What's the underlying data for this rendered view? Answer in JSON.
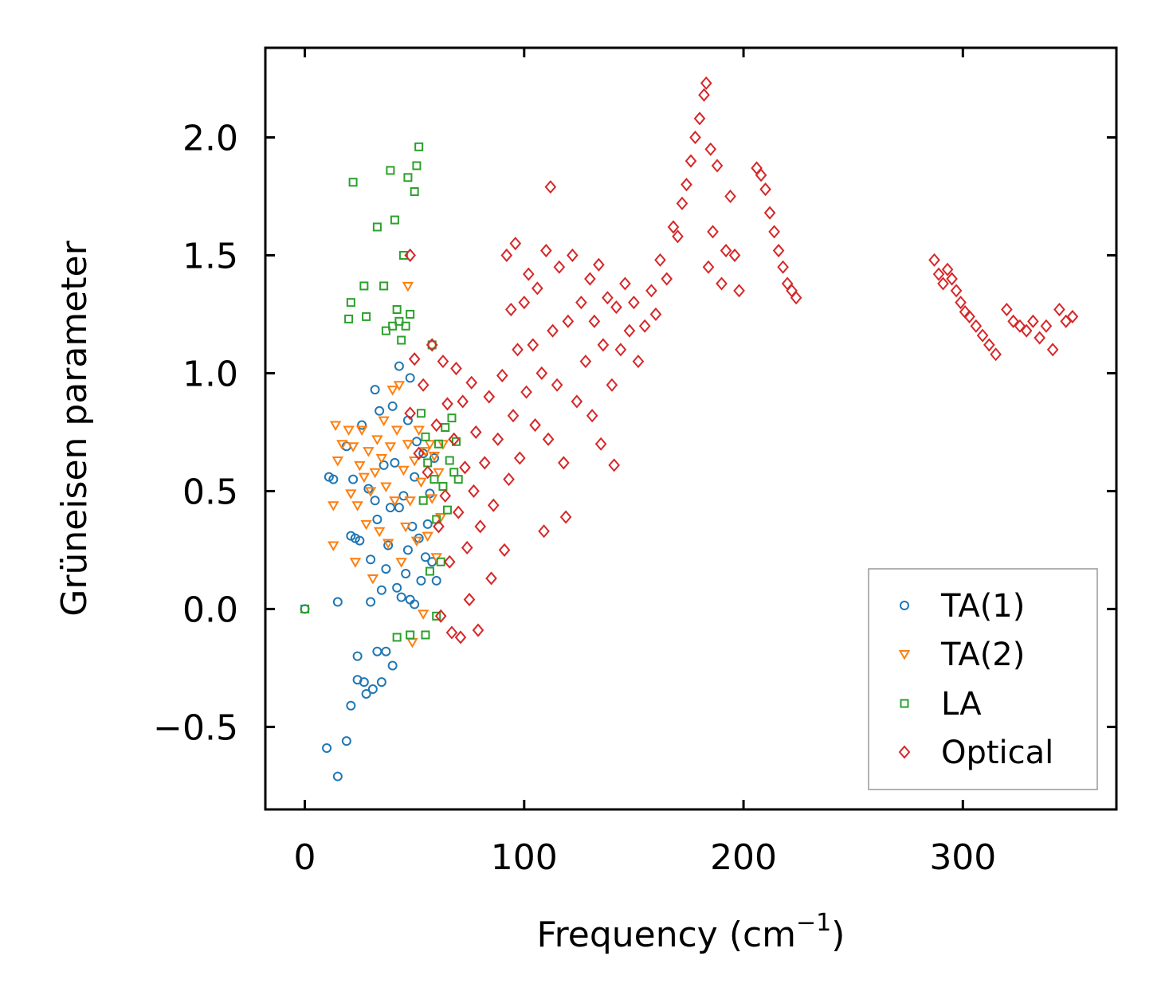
{
  "chart_data": {
    "type": "scatter",
    "title": "",
    "xlabel": "Frequency (cm",
    "xlabel_sup": "−1",
    "xlabel_close": ")",
    "ylabel": "Grüneisen parameter",
    "xlim": [
      -18,
      370
    ],
    "ylim": [
      -0.85,
      2.38
    ],
    "xticks": [
      0,
      100,
      200,
      300
    ],
    "xtick_labels": [
      "0",
      "100",
      "200",
      "300"
    ],
    "yticks": [
      -0.5,
      0.0,
      0.5,
      1.0,
      1.5,
      2.0
    ],
    "ytick_labels": [
      "−0.5",
      "0.0",
      "0.5",
      "1.0",
      "1.5",
      "2.0"
    ],
    "legend_position": "lower-right",
    "series": [
      {
        "name": "TA(1)",
        "marker": "circle",
        "color": "#1f77b4",
        "points": [
          [
            0,
            0.0
          ],
          [
            10,
            -0.59
          ],
          [
            11,
            0.56
          ],
          [
            13,
            0.55
          ],
          [
            15,
            -0.71
          ],
          [
            15,
            0.03
          ],
          [
            19,
            -0.56
          ],
          [
            19,
            0.69
          ],
          [
            21,
            -0.41
          ],
          [
            21,
            0.31
          ],
          [
            22,
            0.55
          ],
          [
            23,
            0.3
          ],
          [
            24,
            -0.2
          ],
          [
            24,
            -0.3
          ],
          [
            25,
            0.29
          ],
          [
            26,
            0.78
          ],
          [
            27,
            -0.31
          ],
          [
            28,
            -0.36
          ],
          [
            29,
            0.51
          ],
          [
            30,
            0.03
          ],
          [
            30,
            0.21
          ],
          [
            31,
            -0.34
          ],
          [
            32,
            0.46
          ],
          [
            32,
            0.93
          ],
          [
            33,
            -0.18
          ],
          [
            33,
            0.38
          ],
          [
            34,
            0.84
          ],
          [
            35,
            0.08
          ],
          [
            35,
            -0.31
          ],
          [
            36,
            0.61
          ],
          [
            37,
            0.17
          ],
          [
            37,
            -0.18
          ],
          [
            38,
            0.27
          ],
          [
            39,
            0.43
          ],
          [
            40,
            0.86
          ],
          [
            40,
            -0.24
          ],
          [
            41,
            0.62
          ],
          [
            42,
            0.09
          ],
          [
            43,
            0.43
          ],
          [
            43,
            1.03
          ],
          [
            44,
            0.05
          ],
          [
            45,
            0.48
          ],
          [
            46,
            0.15
          ],
          [
            47,
            0.25
          ],
          [
            47,
            0.8
          ],
          [
            48,
            0.04
          ],
          [
            48,
            0.98
          ],
          [
            49,
            0.35
          ],
          [
            50,
            0.02
          ],
          [
            50,
            0.56
          ],
          [
            51,
            0.71
          ],
          [
            52,
            0.3
          ],
          [
            53,
            0.12
          ],
          [
            54,
            0.66
          ],
          [
            55,
            0.22
          ],
          [
            56,
            0.36
          ],
          [
            57,
            0.49
          ],
          [
            58,
            0.2
          ],
          [
            59,
            0.64
          ],
          [
            60,
            0.12
          ]
        ]
      },
      {
        "name": "TA(2)",
        "marker": "triangle",
        "color": "#ff7f0e",
        "points": [
          [
            13,
            0.27
          ],
          [
            13,
            0.44
          ],
          [
            14,
            0.78
          ],
          [
            15,
            0.63
          ],
          [
            17,
            0.7
          ],
          [
            20,
            0.76
          ],
          [
            21,
            0.49
          ],
          [
            22,
            0.69
          ],
          [
            23,
            0.2
          ],
          [
            24,
            0.44
          ],
          [
            25,
            0.61
          ],
          [
            26,
            0.76
          ],
          [
            27,
            0.56
          ],
          [
            28,
            0.36
          ],
          [
            29,
            0.67
          ],
          [
            30,
            0.5
          ],
          [
            31,
            0.13
          ],
          [
            32,
            0.58
          ],
          [
            33,
            0.72
          ],
          [
            34,
            0.33
          ],
          [
            35,
            0.64
          ],
          [
            36,
            0.8
          ],
          [
            37,
            0.52
          ],
          [
            38,
            0.28
          ],
          [
            39,
            0.69
          ],
          [
            40,
            0.93
          ],
          [
            41,
            0.46
          ],
          [
            42,
            0.76
          ],
          [
            43,
            0.95
          ],
          [
            44,
            0.2
          ],
          [
            45,
            0.59
          ],
          [
            46,
            0.35
          ],
          [
            47,
            1.37
          ],
          [
            47,
            0.7
          ],
          [
            48,
            0.46
          ],
          [
            49,
            -0.14
          ],
          [
            50,
            0.63
          ],
          [
            51,
            0.29
          ],
          [
            52,
            0.76
          ],
          [
            53,
            0.54
          ],
          [
            54,
            -0.02
          ],
          [
            55,
            0.67
          ],
          [
            56,
            0.31
          ],
          [
            57,
            0.7
          ],
          [
            58,
            0.47
          ],
          [
            59,
            0.65
          ],
          [
            60,
            0.22
          ],
          [
            61,
            0.58
          ],
          [
            62,
            0.39
          ],
          [
            63,
            0.7
          ]
        ]
      },
      {
        "name": "LA",
        "marker": "square",
        "color": "#2ca02c",
        "points": [
          [
            0,
            0.0
          ],
          [
            20,
            1.23
          ],
          [
            21,
            1.3
          ],
          [
            22,
            1.81
          ],
          [
            27,
            1.37
          ],
          [
            28,
            1.24
          ],
          [
            33,
            1.62
          ],
          [
            36,
            1.37
          ],
          [
            37,
            1.18
          ],
          [
            39,
            1.86
          ],
          [
            40,
            1.2
          ],
          [
            41,
            1.65
          ],
          [
            42,
            1.27
          ],
          [
            43,
            1.22
          ],
          [
            44,
            1.14
          ],
          [
            45,
            1.5
          ],
          [
            46,
            1.2
          ],
          [
            47,
            1.83
          ],
          [
            48,
            1.25
          ],
          [
            50,
            1.77
          ],
          [
            51,
            1.88
          ],
          [
            52,
            1.96
          ],
          [
            53,
            0.83
          ],
          [
            54,
            0.46
          ],
          [
            55,
            0.73
          ],
          [
            56,
            0.62
          ],
          [
            57,
            0.16
          ],
          [
            58,
            1.12
          ],
          [
            59,
            0.55
          ],
          [
            60,
            0.38
          ],
          [
            61,
            0.7
          ],
          [
            62,
            0.2
          ],
          [
            63,
            0.52
          ],
          [
            64,
            0.77
          ],
          [
            65,
            0.42
          ],
          [
            66,
            0.63
          ],
          [
            67,
            0.81
          ],
          [
            68,
            0.58
          ],
          [
            69,
            0.71
          ],
          [
            70,
            0.55
          ],
          [
            42,
            -0.12
          ],
          [
            48,
            -0.11
          ],
          [
            55,
            -0.11
          ],
          [
            60,
            -0.03
          ]
        ]
      },
      {
        "name": "Optical",
        "marker": "diamond",
        "color": "#d62728",
        "points": [
          [
            48,
            1.5
          ],
          [
            48,
            0.83
          ],
          [
            50,
            1.06
          ],
          [
            52,
            0.66
          ],
          [
            54,
            0.95
          ],
          [
            56,
            0.58
          ],
          [
            58,
            1.12
          ],
          [
            60,
            0.78
          ],
          [
            61,
            0.35
          ],
          [
            62,
            -0.03
          ],
          [
            63,
            1.05
          ],
          [
            64,
            0.48
          ],
          [
            65,
            0.87
          ],
          [
            66,
            0.2
          ],
          [
            67,
            -0.1
          ],
          [
            68,
            0.72
          ],
          [
            69,
            1.02
          ],
          [
            70,
            0.41
          ],
          [
            71,
            -0.12
          ],
          [
            72,
            0.88
          ],
          [
            73,
            0.6
          ],
          [
            74,
            0.26
          ],
          [
            75,
            0.04
          ],
          [
            76,
            0.96
          ],
          [
            77,
            0.5
          ],
          [
            78,
            0.75
          ],
          [
            79,
            -0.09
          ],
          [
            80,
            0.35
          ],
          [
            82,
            0.62
          ],
          [
            84,
            0.9
          ],
          [
            85,
            0.13
          ],
          [
            86,
            0.44
          ],
          [
            88,
            0.72
          ],
          [
            90,
            0.99
          ],
          [
            91,
            0.25
          ],
          [
            92,
            1.5
          ],
          [
            93,
            0.55
          ],
          [
            94,
            1.27
          ],
          [
            95,
            0.82
          ],
          [
            96,
            1.55
          ],
          [
            97,
            1.1
          ],
          [
            98,
            0.64
          ],
          [
            100,
            1.3
          ],
          [
            101,
            0.92
          ],
          [
            102,
            1.42
          ],
          [
            104,
            1.12
          ],
          [
            105,
            0.78
          ],
          [
            106,
            1.36
          ],
          [
            108,
            1.0
          ],
          [
            109,
            0.33
          ],
          [
            110,
            1.52
          ],
          [
            111,
            0.72
          ],
          [
            112,
            1.79
          ],
          [
            113,
            1.18
          ],
          [
            115,
            0.95
          ],
          [
            116,
            1.45
          ],
          [
            118,
            0.62
          ],
          [
            119,
            0.39
          ],
          [
            120,
            1.22
          ],
          [
            122,
            1.5
          ],
          [
            124,
            0.88
          ],
          [
            126,
            1.3
          ],
          [
            128,
            1.05
          ],
          [
            130,
            1.4
          ],
          [
            131,
            0.82
          ],
          [
            132,
            1.22
          ],
          [
            134,
            1.46
          ],
          [
            135,
            0.7
          ],
          [
            136,
            1.12
          ],
          [
            138,
            1.32
          ],
          [
            140,
            0.95
          ],
          [
            141,
            0.61
          ],
          [
            142,
            1.28
          ],
          [
            144,
            1.1
          ],
          [
            146,
            1.38
          ],
          [
            148,
            1.18
          ],
          [
            150,
            1.3
          ],
          [
            152,
            1.05
          ],
          [
            155,
            1.2
          ],
          [
            158,
            1.35
          ],
          [
            160,
            1.25
          ],
          [
            162,
            1.48
          ],
          [
            165,
            1.4
          ],
          [
            168,
            1.62
          ],
          [
            170,
            1.58
          ],
          [
            172,
            1.72
          ],
          [
            174,
            1.8
          ],
          [
            176,
            1.9
          ],
          [
            178,
            2.0
          ],
          [
            180,
            2.08
          ],
          [
            182,
            2.18
          ],
          [
            183,
            2.23
          ],
          [
            184,
            1.45
          ],
          [
            185,
            1.95
          ],
          [
            186,
            1.6
          ],
          [
            188,
            1.88
          ],
          [
            190,
            1.38
          ],
          [
            192,
            1.52
          ],
          [
            194,
            1.75
          ],
          [
            196,
            1.5
          ],
          [
            198,
            1.35
          ],
          [
            206,
            1.87
          ],
          [
            208,
            1.84
          ],
          [
            210,
            1.78
          ],
          [
            212,
            1.68
          ],
          [
            214,
            1.6
          ],
          [
            216,
            1.52
          ],
          [
            218,
            1.45
          ],
          [
            220,
            1.38
          ],
          [
            222,
            1.35
          ],
          [
            224,
            1.32
          ],
          [
            287,
            1.48
          ],
          [
            289,
            1.42
          ],
          [
            291,
            1.38
          ],
          [
            293,
            1.44
          ],
          [
            295,
            1.4
          ],
          [
            297,
            1.35
          ],
          [
            299,
            1.3
          ],
          [
            301,
            1.26
          ],
          [
            303,
            1.24
          ],
          [
            306,
            1.2
          ],
          [
            309,
            1.16
          ],
          [
            312,
            1.12
          ],
          [
            315,
            1.08
          ],
          [
            320,
            1.27
          ],
          [
            323,
            1.22
          ],
          [
            326,
            1.2
          ],
          [
            329,
            1.18
          ],
          [
            332,
            1.22
          ],
          [
            335,
            1.15
          ],
          [
            338,
            1.2
          ],
          [
            341,
            1.1
          ],
          [
            344,
            1.27
          ],
          [
            347,
            1.22
          ],
          [
            350,
            1.24
          ]
        ]
      }
    ]
  }
}
